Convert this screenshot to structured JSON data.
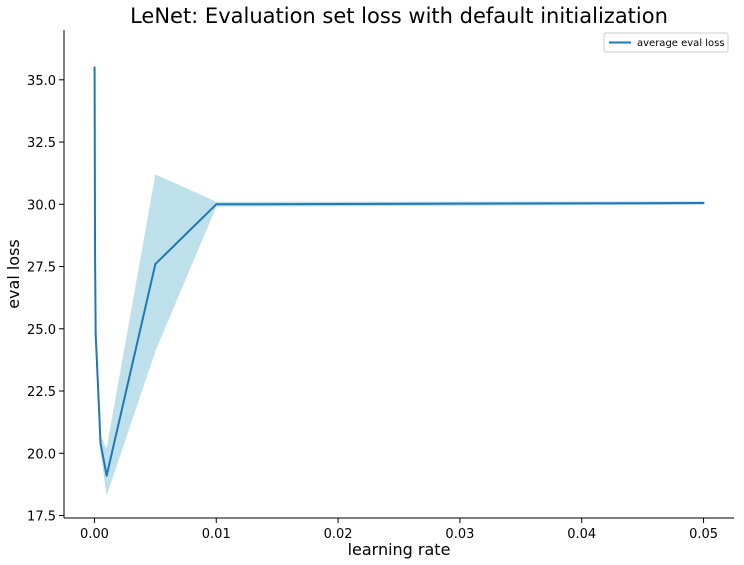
{
  "chart_data": {
    "type": "line",
    "title": "LeNet: Evaluation set loss with default initialization",
    "xlabel": "learning rate",
    "ylabel": "eval loss",
    "xlim": [
      -0.0025,
      0.0525
    ],
    "ylim": [
      17.4,
      37.0
    ],
    "xticks": [
      0.0,
      0.01,
      0.02,
      0.03,
      0.04,
      0.05
    ],
    "xtick_labels": [
      "0.00",
      "0.01",
      "0.02",
      "0.03",
      "0.04",
      "0.05"
    ],
    "yticks": [
      17.5,
      20.0,
      22.5,
      25.0,
      27.5,
      30.0,
      32.5,
      35.0
    ],
    "ytick_labels": [
      "17.5",
      "20.0",
      "22.5",
      "25.0",
      "27.5",
      "30.0",
      "32.5",
      "35.0"
    ],
    "grid": false,
    "legend_position": "top-right",
    "series": [
      {
        "name": "average eval loss",
        "color": "#1f77b4",
        "band_color": "#add8e6",
        "x": [
          1e-05,
          5e-05,
          0.0001,
          0.0005,
          0.001,
          0.005,
          0.01,
          0.05
        ],
        "y": [
          35.5,
          28.0,
          24.8,
          20.4,
          19.1,
          27.6,
          30.0,
          30.05
        ],
        "lower": [
          34.5,
          27.0,
          24.0,
          20.0,
          18.3,
          24.1,
          29.9,
          29.98
        ],
        "upper": [
          36.5,
          29.0,
          25.6,
          20.7,
          20.2,
          31.2,
          30.1,
          30.12
        ]
      }
    ]
  }
}
